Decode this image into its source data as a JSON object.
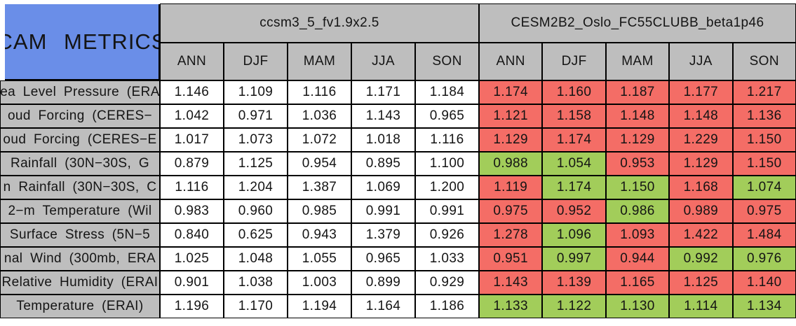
{
  "colors": {
    "title_bg": "#6A8EE8",
    "header_bg": "#BEBEBE",
    "label_bg": "#BEBEBE",
    "white": "#FFFFFF",
    "red": "#F46D66",
    "green": "#A2CD5A",
    "border": "#000000"
  },
  "chart_data": {
    "type": "table",
    "title": "CAM METRICS",
    "column_groups": [
      "ccsm3_5_fv1.9x2.5",
      "CESM2B2_Oslo_FC55CLUBB_beta1p46"
    ],
    "seasons": [
      "ANN",
      "DJF",
      "MAM",
      "JJA",
      "SON"
    ],
    "cell_color_legend": "group1 cells white; group2 cells red or green",
    "rows": [
      {
        "label": "ea Level Pressure (ERA",
        "group1_values": [
          "1.146",
          "1.109",
          "1.116",
          "1.171",
          "1.184"
        ],
        "group2_values": [
          "1.174",
          "1.160",
          "1.187",
          "1.177",
          "1.217"
        ],
        "group2_colors": [
          "red",
          "red",
          "red",
          "red",
          "red"
        ]
      },
      {
        "label": "oud Forcing (CERES−",
        "group1_values": [
          "1.042",
          "0.971",
          "1.036",
          "1.143",
          "0.965"
        ],
        "group2_values": [
          "1.121",
          "1.158",
          "1.148",
          "1.148",
          "1.136"
        ],
        "group2_colors": [
          "red",
          "red",
          "red",
          "red",
          "red"
        ]
      },
      {
        "label": "oud Forcing (CERES−E",
        "group1_values": [
          "1.017",
          "1.073",
          "1.072",
          "1.018",
          "1.116"
        ],
        "group2_values": [
          "1.129",
          "1.174",
          "1.129",
          "1.229",
          "1.150"
        ],
        "group2_colors": [
          "red",
          "red",
          "red",
          "red",
          "red"
        ]
      },
      {
        "label": "Rainfall (30N−30S, G",
        "group1_values": [
          "0.879",
          "1.125",
          "0.954",
          "0.895",
          "1.100"
        ],
        "group2_values": [
          "0.988",
          "1.054",
          "0.953",
          "1.129",
          "1.150"
        ],
        "group2_colors": [
          "green",
          "green",
          "red",
          "red",
          "red"
        ]
      },
      {
        "label": "n Rainfall (30N−30S, C",
        "group1_values": [
          "1.116",
          "1.204",
          "1.387",
          "1.069",
          "1.200"
        ],
        "group2_values": [
          "1.119",
          "1.174",
          "1.150",
          "1.168",
          "1.074"
        ],
        "group2_colors": [
          "red",
          "green",
          "green",
          "red",
          "green"
        ]
      },
      {
        "label": "2−m Temperature (Wil",
        "group1_values": [
          "0.983",
          "0.960",
          "0.985",
          "0.991",
          "0.991"
        ],
        "group2_values": [
          "0.975",
          "0.952",
          "0.986",
          "0.989",
          "0.975"
        ],
        "group2_colors": [
          "red",
          "red",
          "green",
          "red",
          "red"
        ]
      },
      {
        "label": "Surface Stress (5N−5",
        "group1_values": [
          "0.840",
          "0.625",
          "0.943",
          "1.379",
          "0.926"
        ],
        "group2_values": [
          "1.278",
          "1.096",
          "1.093",
          "1.422",
          "1.484"
        ],
        "group2_colors": [
          "red",
          "green",
          "red",
          "red",
          "red"
        ]
      },
      {
        "label": "nal Wind (300mb, ERA",
        "group1_values": [
          "1.025",
          "1.048",
          "1.055",
          "0.965",
          "1.033"
        ],
        "group2_values": [
          "0.951",
          "0.997",
          "0.944",
          "0.992",
          "0.976"
        ],
        "group2_colors": [
          "red",
          "green",
          "red",
          "green",
          "green"
        ]
      },
      {
        "label": "Relative Humidity (ERAI",
        "group1_values": [
          "0.901",
          "1.038",
          "1.003",
          "0.899",
          "0.929"
        ],
        "group2_values": [
          "1.143",
          "1.139",
          "1.165",
          "1.125",
          "1.140"
        ],
        "group2_colors": [
          "red",
          "red",
          "red",
          "red",
          "red"
        ]
      },
      {
        "label": "Temperature (ERAI)",
        "group1_values": [
          "1.196",
          "1.170",
          "1.194",
          "1.164",
          "1.186"
        ],
        "group2_values": [
          "1.133",
          "1.122",
          "1.130",
          "1.114",
          "1.134"
        ],
        "group2_colors": [
          "green",
          "green",
          "green",
          "green",
          "green"
        ]
      }
    ]
  }
}
